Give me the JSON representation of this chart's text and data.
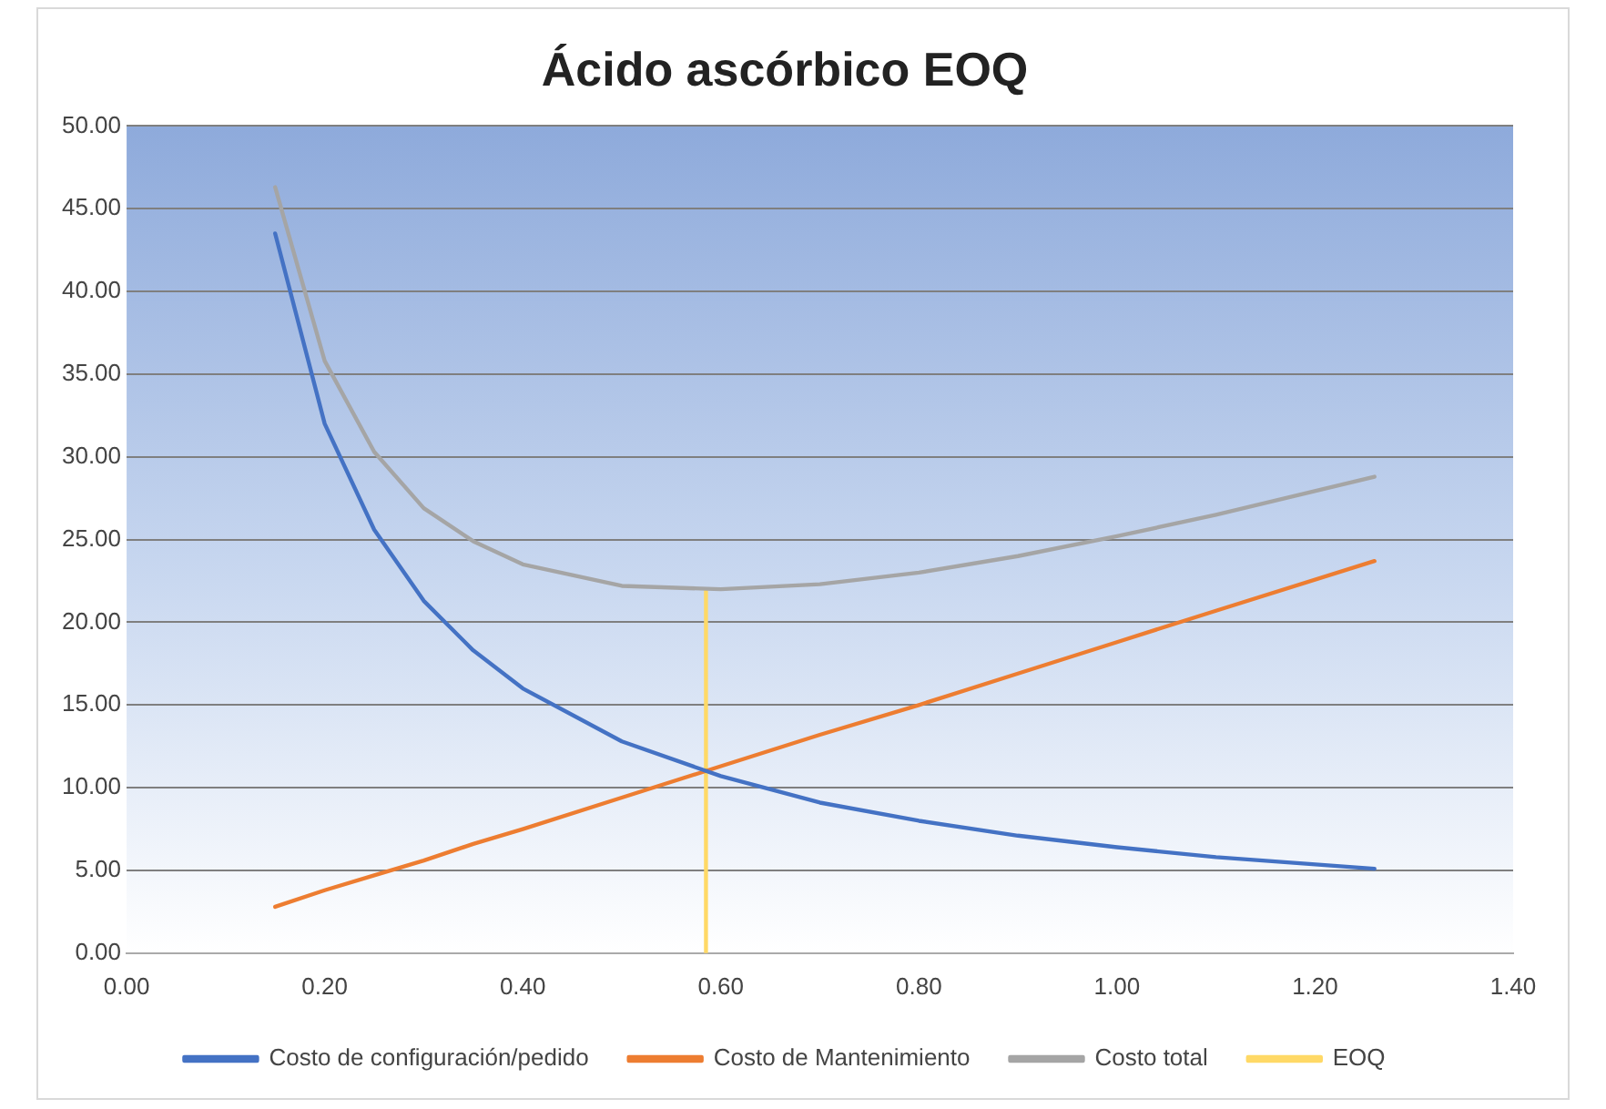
{
  "chart_data": {
    "type": "line",
    "title": "Ácido ascórbico EOQ",
    "series": [
      {
        "name": "Costo de configuración/pedido",
        "color": "#4472c4",
        "x": [
          0.15,
          0.2,
          0.25,
          0.3,
          0.35,
          0.4,
          0.5,
          0.6,
          0.7,
          0.8,
          0.9,
          1.0,
          1.1,
          1.26
        ],
        "values": [
          43.5,
          32.0,
          25.6,
          21.3,
          18.3,
          16.0,
          12.8,
          10.7,
          9.1,
          8.0,
          7.1,
          6.4,
          5.8,
          5.1
        ]
      },
      {
        "name": "Costo de Mantenimiento",
        "color": "#ed7d31",
        "x": [
          0.15,
          0.2,
          0.25,
          0.3,
          0.35,
          0.4,
          0.5,
          0.6,
          0.7,
          0.8,
          0.9,
          1.0,
          1.1,
          1.26
        ],
        "values": [
          2.8,
          3.8,
          4.7,
          5.6,
          6.6,
          7.5,
          9.4,
          11.3,
          13.2,
          15.0,
          16.9,
          18.8,
          20.7,
          23.7
        ]
      },
      {
        "name": "Costo total",
        "color": "#a5a5a5",
        "x": [
          0.15,
          0.2,
          0.25,
          0.3,
          0.35,
          0.4,
          0.5,
          0.6,
          0.7,
          0.8,
          0.9,
          1.0,
          1.1,
          1.26
        ],
        "values": [
          46.3,
          35.8,
          30.3,
          26.9,
          24.9,
          23.5,
          22.2,
          22.0,
          22.3,
          23.0,
          24.0,
          25.2,
          26.5,
          28.8
        ]
      },
      {
        "name": "EOQ",
        "color": "#ffd966",
        "x": [
          0.585,
          0.585
        ],
        "values": [
          0,
          21.9
        ]
      }
    ],
    "xlim": [
      0,
      1.4
    ],
    "xticks": [
      {
        "value": 0,
        "label": "0.00"
      },
      {
        "value": 0.2,
        "label": "0.20"
      },
      {
        "value": 0.4,
        "label": "0.40"
      },
      {
        "value": 0.6,
        "label": "0.60"
      },
      {
        "value": 0.8,
        "label": "0.80"
      },
      {
        "value": 1.0,
        "label": "1.00"
      },
      {
        "value": 1.2,
        "label": "1.20"
      },
      {
        "value": 1.4,
        "label": "1.40"
      }
    ],
    "ylim": [
      0,
      50
    ],
    "yticks": [
      {
        "value": 0,
        "label": "0.00"
      },
      {
        "value": 5,
        "label": "5.00"
      },
      {
        "value": 10,
        "label": "10.00"
      },
      {
        "value": 15,
        "label": "15.00"
      },
      {
        "value": 20,
        "label": "20.00"
      },
      {
        "value": 25,
        "label": "25.00"
      },
      {
        "value": 30,
        "label": "30.00"
      },
      {
        "value": 35,
        "label": "35.00"
      },
      {
        "value": 40,
        "label": "40.00"
      },
      {
        "value": 45,
        "label": "45.00"
      },
      {
        "value": 50,
        "label": "50.00"
      }
    ],
    "grid": "y",
    "legend": "bottom",
    "marker": "none",
    "line_style": "solid"
  }
}
